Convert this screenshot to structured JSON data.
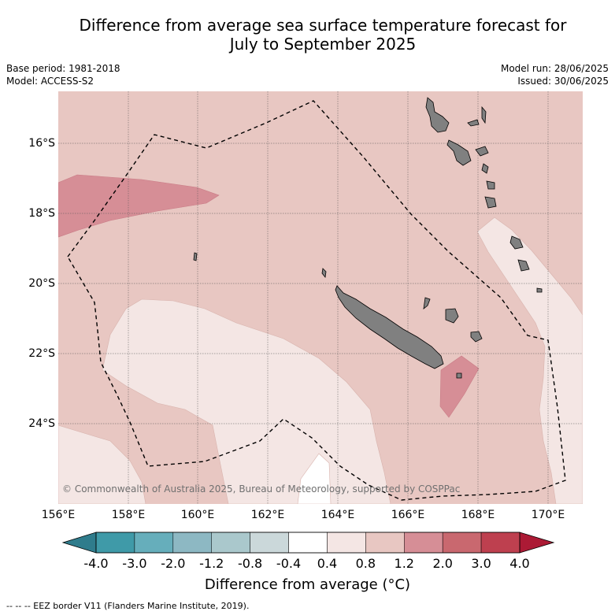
{
  "title_line1": "Difference from average sea surface temperature forecast for",
  "title_line2": "July to September 2025",
  "base_period": "Base period: 1981-2018",
  "model": "Model: ACCESS-S2",
  "model_run": "Model run: 28/06/2025",
  "issued": "Issued: 30/06/2025",
  "lat_labels": [
    "16°S",
    "18°S",
    "20°S",
    "22°S",
    "24°S"
  ],
  "lon_labels": [
    "156°E",
    "158°E",
    "160°E",
    "162°E",
    "164°E",
    "166°E",
    "168°E",
    "170°E"
  ],
  "copyright": "© Commonwealth of Australia 2025, Bureau of Meteorology, supported by COSPPac",
  "colorbar": {
    "title": "Difference from average (°C)",
    "tick_labels": [
      "-4.0",
      "-3.0",
      "-2.0",
      "-1.2",
      "-0.8",
      "-0.4",
      "0.4",
      "0.8",
      "1.2",
      "2.0",
      "3.0",
      "4.0"
    ],
    "colors": [
      "#3f9aa8",
      "#66aebb",
      "#8db8c3",
      "#aac8cc",
      "#cbd8da",
      "#ffffff",
      "#f4e6e4",
      "#e8c7c2",
      "#d68e96",
      "#c9686f",
      "#be404f"
    ],
    "under_color": "#2f7c8c",
    "over_color": "#ac1a35"
  },
  "footnote": "--  --  -- EEZ border V11 (Flanders Marine Institute, 2019).",
  "colors": {
    "land": "#808080",
    "background_anomaly": "#e8c7c2"
  }
}
